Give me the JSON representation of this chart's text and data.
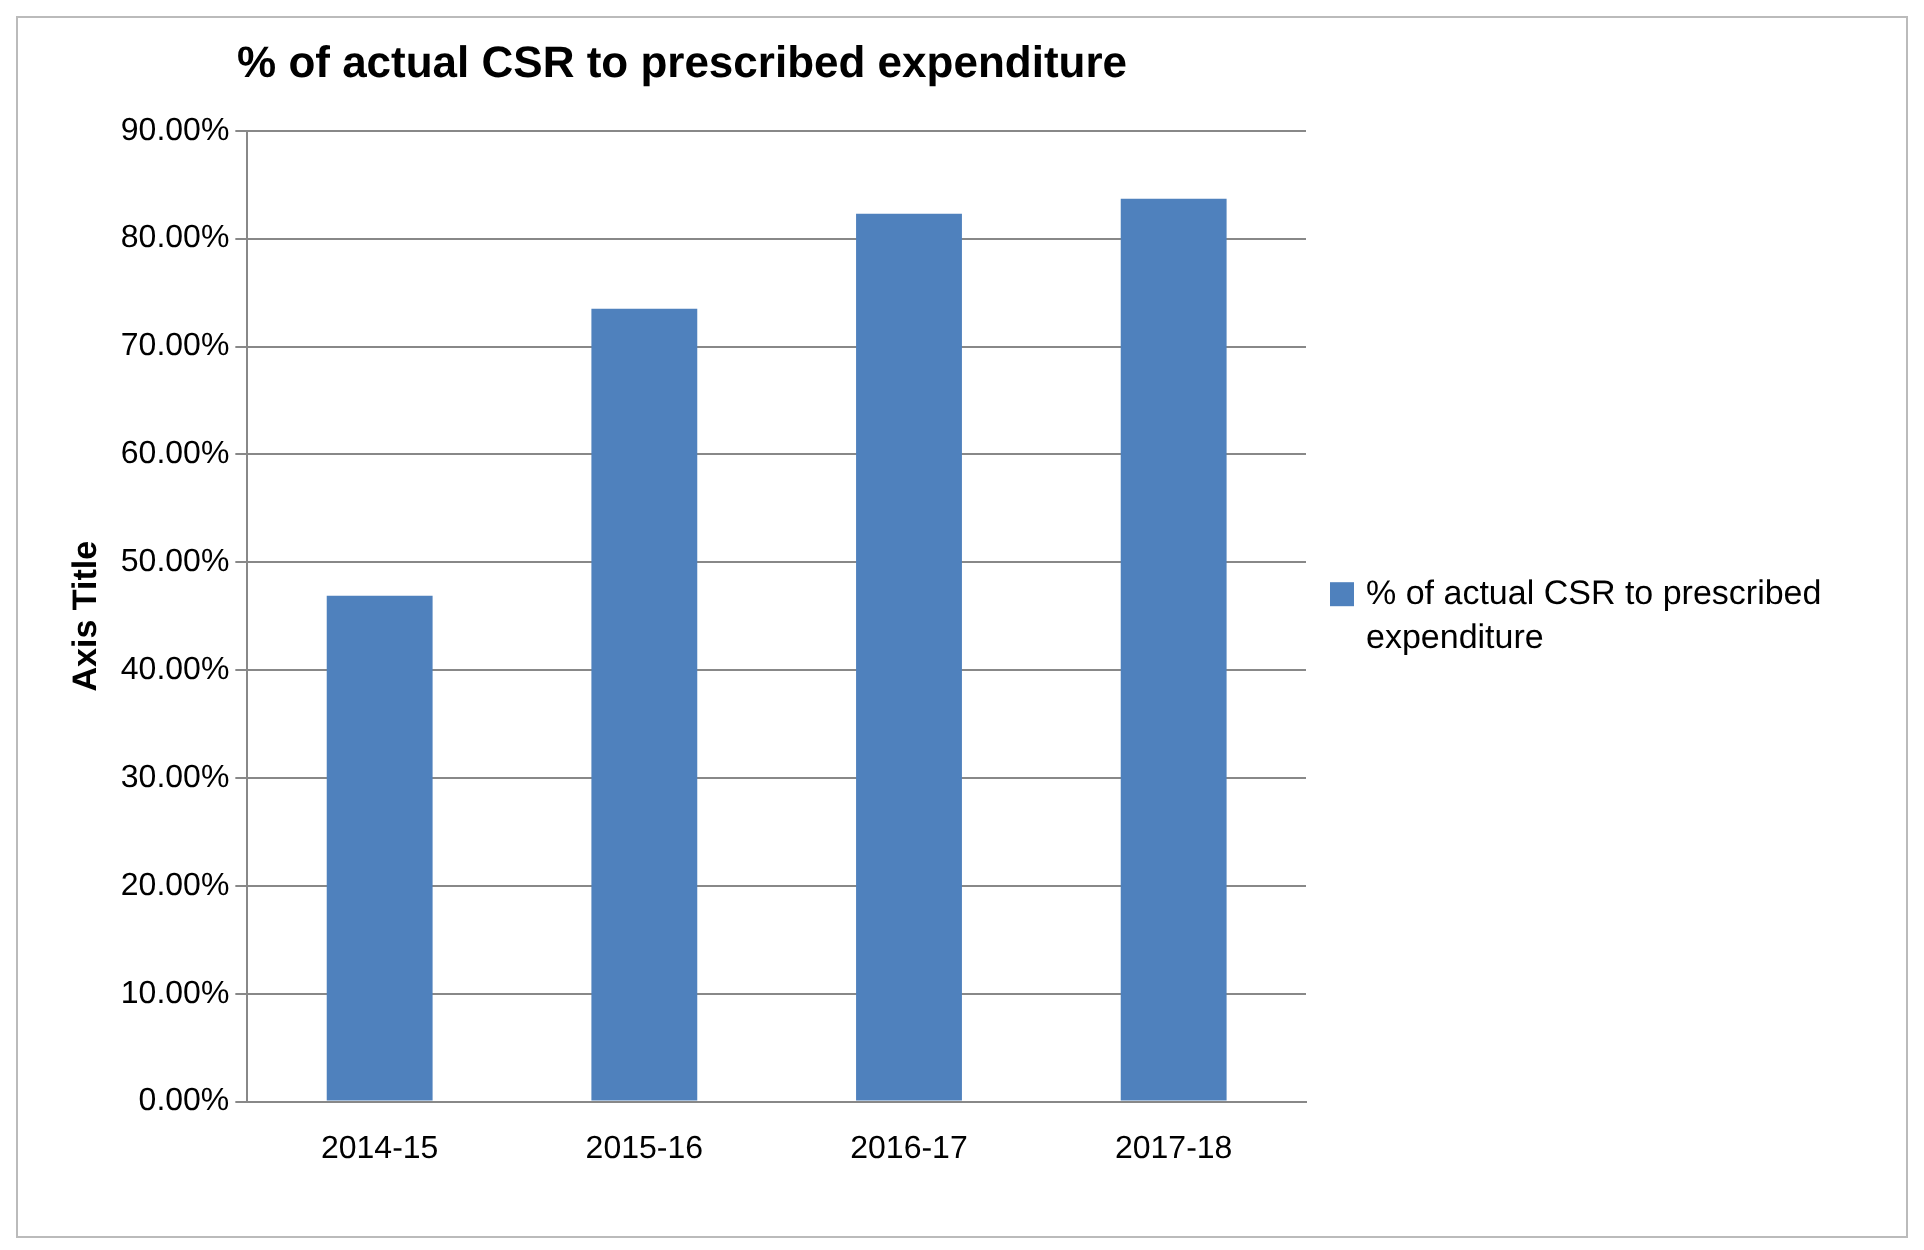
{
  "chart_data": {
    "type": "bar",
    "title": "% of actual CSR to prescribed expenditure",
    "ylabel": "Axis Title",
    "categories": [
      "2014-15",
      "2015-16",
      "2016-17",
      "2017-18"
    ],
    "series": [
      {
        "name": "% of actual CSR to prescribed expenditure",
        "color": "#4f81bd",
        "values": [
          46.9,
          73.5,
          82.3,
          83.7
        ]
      }
    ],
    "ylim": [
      0,
      90
    ],
    "yticks": [
      {
        "value": 0,
        "label": "0.00%"
      },
      {
        "value": 10,
        "label": "10.00%"
      },
      {
        "value": 20,
        "label": "20.00%"
      },
      {
        "value": 30,
        "label": "30.00%"
      },
      {
        "value": 40,
        "label": "40.00%"
      },
      {
        "value": 50,
        "label": "50.00%"
      },
      {
        "value": 60,
        "label": "60.00%"
      },
      {
        "value": 70,
        "label": "70.00%"
      },
      {
        "value": 80,
        "label": "80.00%"
      },
      {
        "value": 90,
        "label": "90.00%"
      }
    ],
    "grid": "y",
    "legend": "right"
  }
}
